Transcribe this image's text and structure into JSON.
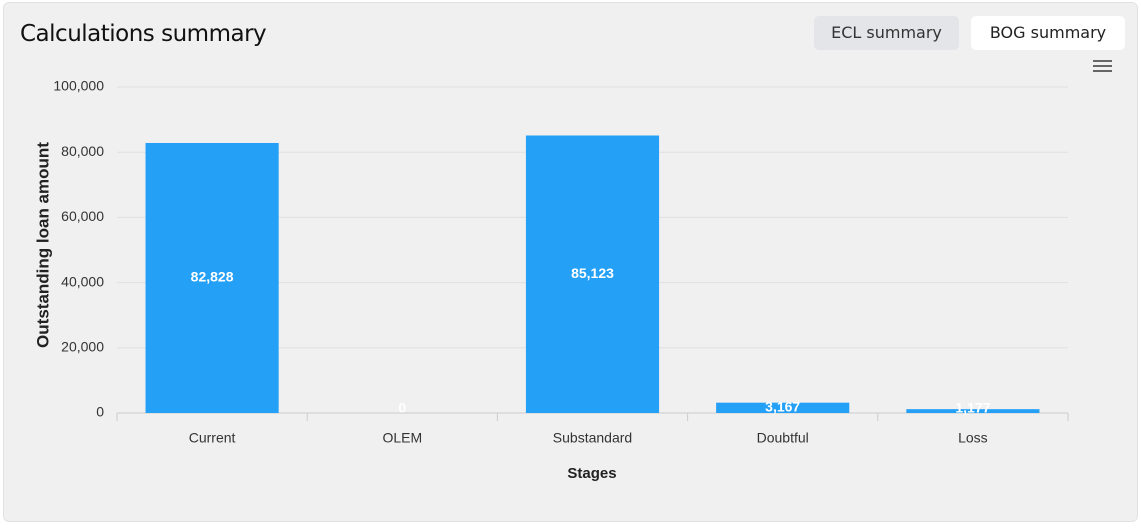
{
  "buttons": [
    "ECL summary",
    "BOG summary"
  ],
  "chart_data": {
    "type": "bar",
    "title": "Calculations summary",
    "x_label": "Stages",
    "y_label": "Outstanding loan amount",
    "categories": [
      "Current",
      "OLEM",
      "Substandard",
      "Doubtful",
      "Loss"
    ],
    "values": [
      82828,
      0,
      85123,
      3167,
      1177
    ],
    "value_labels": [
      "82,828",
      "0",
      "85,123",
      "3,167",
      "1,177"
    ],
    "color": "#24a0f7",
    "ylim": [
      0,
      100000
    ],
    "yticks": [
      0,
      {
        "value": 20000,
        "label": "20,000"
      },
      {
        "value": 40000,
        "label": "40,000"
      },
      {
        "value": 60000,
        "label": "60,000"
      },
      {
        "value": 80000,
        "label": "80,000"
      },
      {
        "value": 100000,
        "label": "100,000"
      }
    ],
    "grid": true
  }
}
